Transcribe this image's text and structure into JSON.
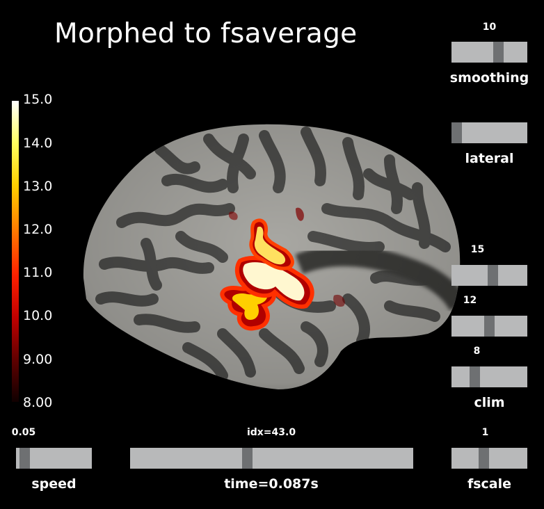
{
  "title": "Morphed to fsaverage",
  "colorbar": {
    "ticks": [
      "15.0",
      "14.0",
      "13.0",
      "12.0",
      "11.0",
      "10.0",
      "9.00",
      "8.00"
    ],
    "colormap": "hot"
  },
  "sliders": {
    "smoothing": {
      "label": "smoothing",
      "value": "10",
      "fraction": 0.64
    },
    "lateral": {
      "label": "lateral",
      "value": "",
      "fraction": 0.0
    },
    "clim_high": {
      "label": "",
      "value": "15",
      "fraction": 0.55
    },
    "clim_mid": {
      "label": "",
      "value": "12",
      "fraction": 0.5
    },
    "clim_low": {
      "label": "clim",
      "value": "8",
      "fraction": 0.28
    },
    "speed": {
      "label": "speed",
      "value": "0.05",
      "fraction": 0.05
    },
    "time": {
      "label": "time=0.087s",
      "value": "idx=43.0",
      "fraction": 0.41
    },
    "fscale": {
      "label": "fscale",
      "value": "1",
      "fraction": 0.41
    }
  },
  "colors": {
    "background": "#000000",
    "slider_track": "#b8b9ba",
    "slider_thumb": "#6e7072",
    "gyri": "#a8a7a2",
    "sulci": "#4c4c4a"
  }
}
